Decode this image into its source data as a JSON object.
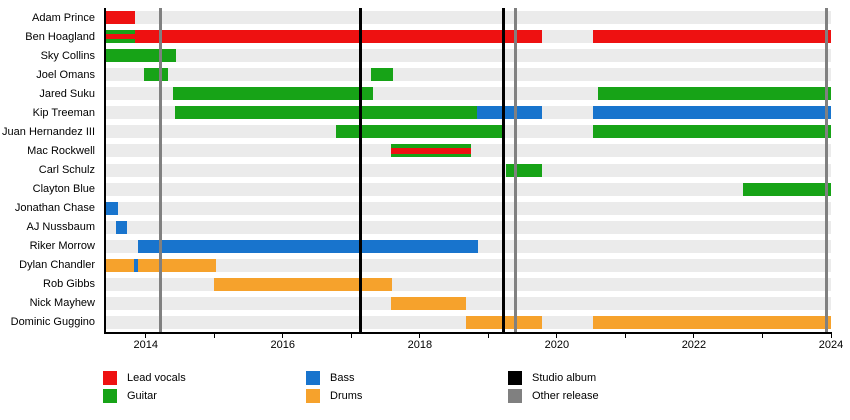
{
  "chart_data": {
    "type": "timeline",
    "x_domain": [
      2013.42,
      2024.0
    ],
    "x_ticks": [
      {
        "year": 2014,
        "label": "2014"
      },
      {
        "year": 2015,
        "label": ""
      },
      {
        "year": 2016,
        "label": "2016"
      },
      {
        "year": 2017,
        "label": ""
      },
      {
        "year": 2018,
        "label": "2018"
      },
      {
        "year": 2019,
        "label": ""
      },
      {
        "year": 2020,
        "label": "2020"
      },
      {
        "year": 2021,
        "label": ""
      },
      {
        "year": 2022,
        "label": "2022"
      },
      {
        "year": 2023,
        "label": ""
      },
      {
        "year": 2024,
        "label": "2024"
      }
    ],
    "colors": {
      "lead_vocals": "#ee1111",
      "guitar": "#17a317",
      "bass": "#1874cd",
      "drums": "#f6a22c",
      "studio_album": "#000000",
      "other_release": "#808080",
      "row_stripe": "#ebebeb",
      "axis": "#000000"
    },
    "members": [
      {
        "name": "Adam Prince",
        "segments": [
          {
            "role": "lead_vocals",
            "start": 2013.42,
            "end": 2013.85
          }
        ]
      },
      {
        "name": "Ben Hoagland",
        "segments": [
          {
            "role": "guitar",
            "start": 2013.42,
            "end": 2013.84
          },
          {
            "role": "lead_vocals",
            "start": 2013.42,
            "end": 2013.84,
            "overlay": true
          },
          {
            "role": "lead_vocals",
            "start": 2013.84,
            "end": 2019.78
          },
          {
            "role": "lead_vocals",
            "start": 2020.53,
            "end": 2024.0
          }
        ]
      },
      {
        "name": "Sky Collins",
        "segments": [
          {
            "role": "guitar",
            "start": 2013.42,
            "end": 2014.44
          }
        ]
      },
      {
        "name": "Joel Omans",
        "segments": [
          {
            "role": "guitar",
            "start": 2013.98,
            "end": 2014.33
          },
          {
            "role": "guitar",
            "start": 2017.29,
            "end": 2017.61
          }
        ]
      },
      {
        "name": "Jared Suku",
        "segments": [
          {
            "role": "guitar",
            "start": 2014.4,
            "end": 2017.31
          },
          {
            "role": "guitar",
            "start": 2020.6,
            "end": 2024.0
          }
        ]
      },
      {
        "name": "Kip Treeman",
        "segments": [
          {
            "role": "guitar",
            "start": 2014.42,
            "end": 2018.84
          },
          {
            "role": "bass",
            "start": 2018.84,
            "end": 2019.78
          },
          {
            "role": "bass",
            "start": 2020.53,
            "end": 2024.0
          }
        ]
      },
      {
        "name": "Juan Hernandez III",
        "segments": [
          {
            "role": "guitar",
            "start": 2016.77,
            "end": 2019.25
          },
          {
            "role": "guitar",
            "start": 2020.53,
            "end": 2024.0
          }
        ]
      },
      {
        "name": "Mac Rockwell",
        "segments": [
          {
            "role": "guitar",
            "start": 2017.58,
            "end": 2018.74
          },
          {
            "role": "lead_vocals",
            "start": 2017.58,
            "end": 2018.74,
            "overlay": true
          }
        ]
      },
      {
        "name": "Carl Schulz",
        "segments": [
          {
            "role": "guitar",
            "start": 2019.26,
            "end": 2019.78
          }
        ]
      },
      {
        "name": "Clayton Blue",
        "segments": [
          {
            "role": "guitar",
            "start": 2022.71,
            "end": 2024.0
          }
        ]
      },
      {
        "name": "Jonathan Chase",
        "segments": [
          {
            "role": "bass",
            "start": 2013.42,
            "end": 2013.6
          }
        ]
      },
      {
        "name": "AJ Nussbaum",
        "segments": [
          {
            "role": "bass",
            "start": 2013.56,
            "end": 2013.72
          }
        ]
      },
      {
        "name": "Riker Morrow",
        "segments": [
          {
            "role": "bass",
            "start": 2013.89,
            "end": 2018.85
          }
        ]
      },
      {
        "name": "Dylan Chandler",
        "segments": [
          {
            "role": "drums",
            "start": 2013.42,
            "end": 2013.83
          },
          {
            "role": "bass",
            "start": 2013.83,
            "end": 2013.88
          },
          {
            "role": "drums",
            "start": 2013.88,
            "end": 2015.03
          }
        ]
      },
      {
        "name": "Rob Gibbs",
        "segments": [
          {
            "role": "drums",
            "start": 2015.0,
            "end": 2017.6
          }
        ]
      },
      {
        "name": "Nick Mayhew",
        "segments": [
          {
            "role": "drums",
            "start": 2017.58,
            "end": 2018.67
          }
        ]
      },
      {
        "name": "Dominic Guggino",
        "segments": [
          {
            "role": "drums",
            "start": 2018.67,
            "end": 2019.78
          },
          {
            "role": "drums",
            "start": 2020.53,
            "end": 2024.0
          }
        ]
      }
    ],
    "events": [
      {
        "type": "other_release",
        "year": 2014.22
      },
      {
        "type": "studio_album",
        "year": 2017.13
      },
      {
        "type": "studio_album",
        "year": 2019.22
      },
      {
        "type": "other_release",
        "year": 2019.4
      },
      {
        "type": "other_release",
        "year": 2023.94
      }
    ],
    "legend": {
      "items": [
        {
          "label": "Lead vocals",
          "color_key": "lead_vocals"
        },
        {
          "label": "Guitar",
          "color_key": "guitar"
        },
        {
          "label": "Bass",
          "color_key": "bass"
        },
        {
          "label": "Drums",
          "color_key": "drums"
        },
        {
          "label": "Studio album",
          "color_key": "studio_album"
        },
        {
          "label": "Other release",
          "color_key": "other_release"
        }
      ]
    }
  }
}
